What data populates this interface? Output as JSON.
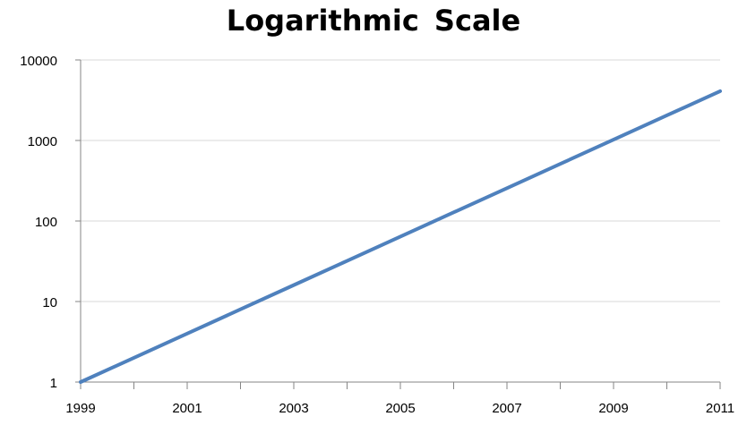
{
  "chart_data": {
    "type": "line",
    "title": "Logarithmic Scale",
    "xlabel": "",
    "ylabel": "",
    "y_scale": "log",
    "x_ticks": [
      "1999",
      "2001",
      "2003",
      "2005",
      "2007",
      "2009",
      "2011"
    ],
    "y_ticks": [
      "1",
      "10",
      "100",
      "1000",
      "10000"
    ],
    "xlim": [
      1999,
      2011
    ],
    "ylim": [
      1,
      10000
    ],
    "grid": true,
    "legend": "none",
    "line_color": "#4f81bd",
    "series": [
      {
        "values": [
          {
            "x": 1999,
            "y": 1
          },
          {
            "x": 2000,
            "y": 2
          },
          {
            "x": 2001,
            "y": 4
          },
          {
            "x": 2002,
            "y": 8
          },
          {
            "x": 2003,
            "y": 16
          },
          {
            "x": 2004,
            "y": 32
          },
          {
            "x": 2005,
            "y": 64
          },
          {
            "x": 2006,
            "y": 128
          },
          {
            "x": 2007,
            "y": 256
          },
          {
            "x": 2008,
            "y": 512
          },
          {
            "x": 2009,
            "y": 1024
          },
          {
            "x": 2010,
            "y": 2048
          },
          {
            "x": 2011,
            "y": 4096
          }
        ]
      }
    ]
  }
}
